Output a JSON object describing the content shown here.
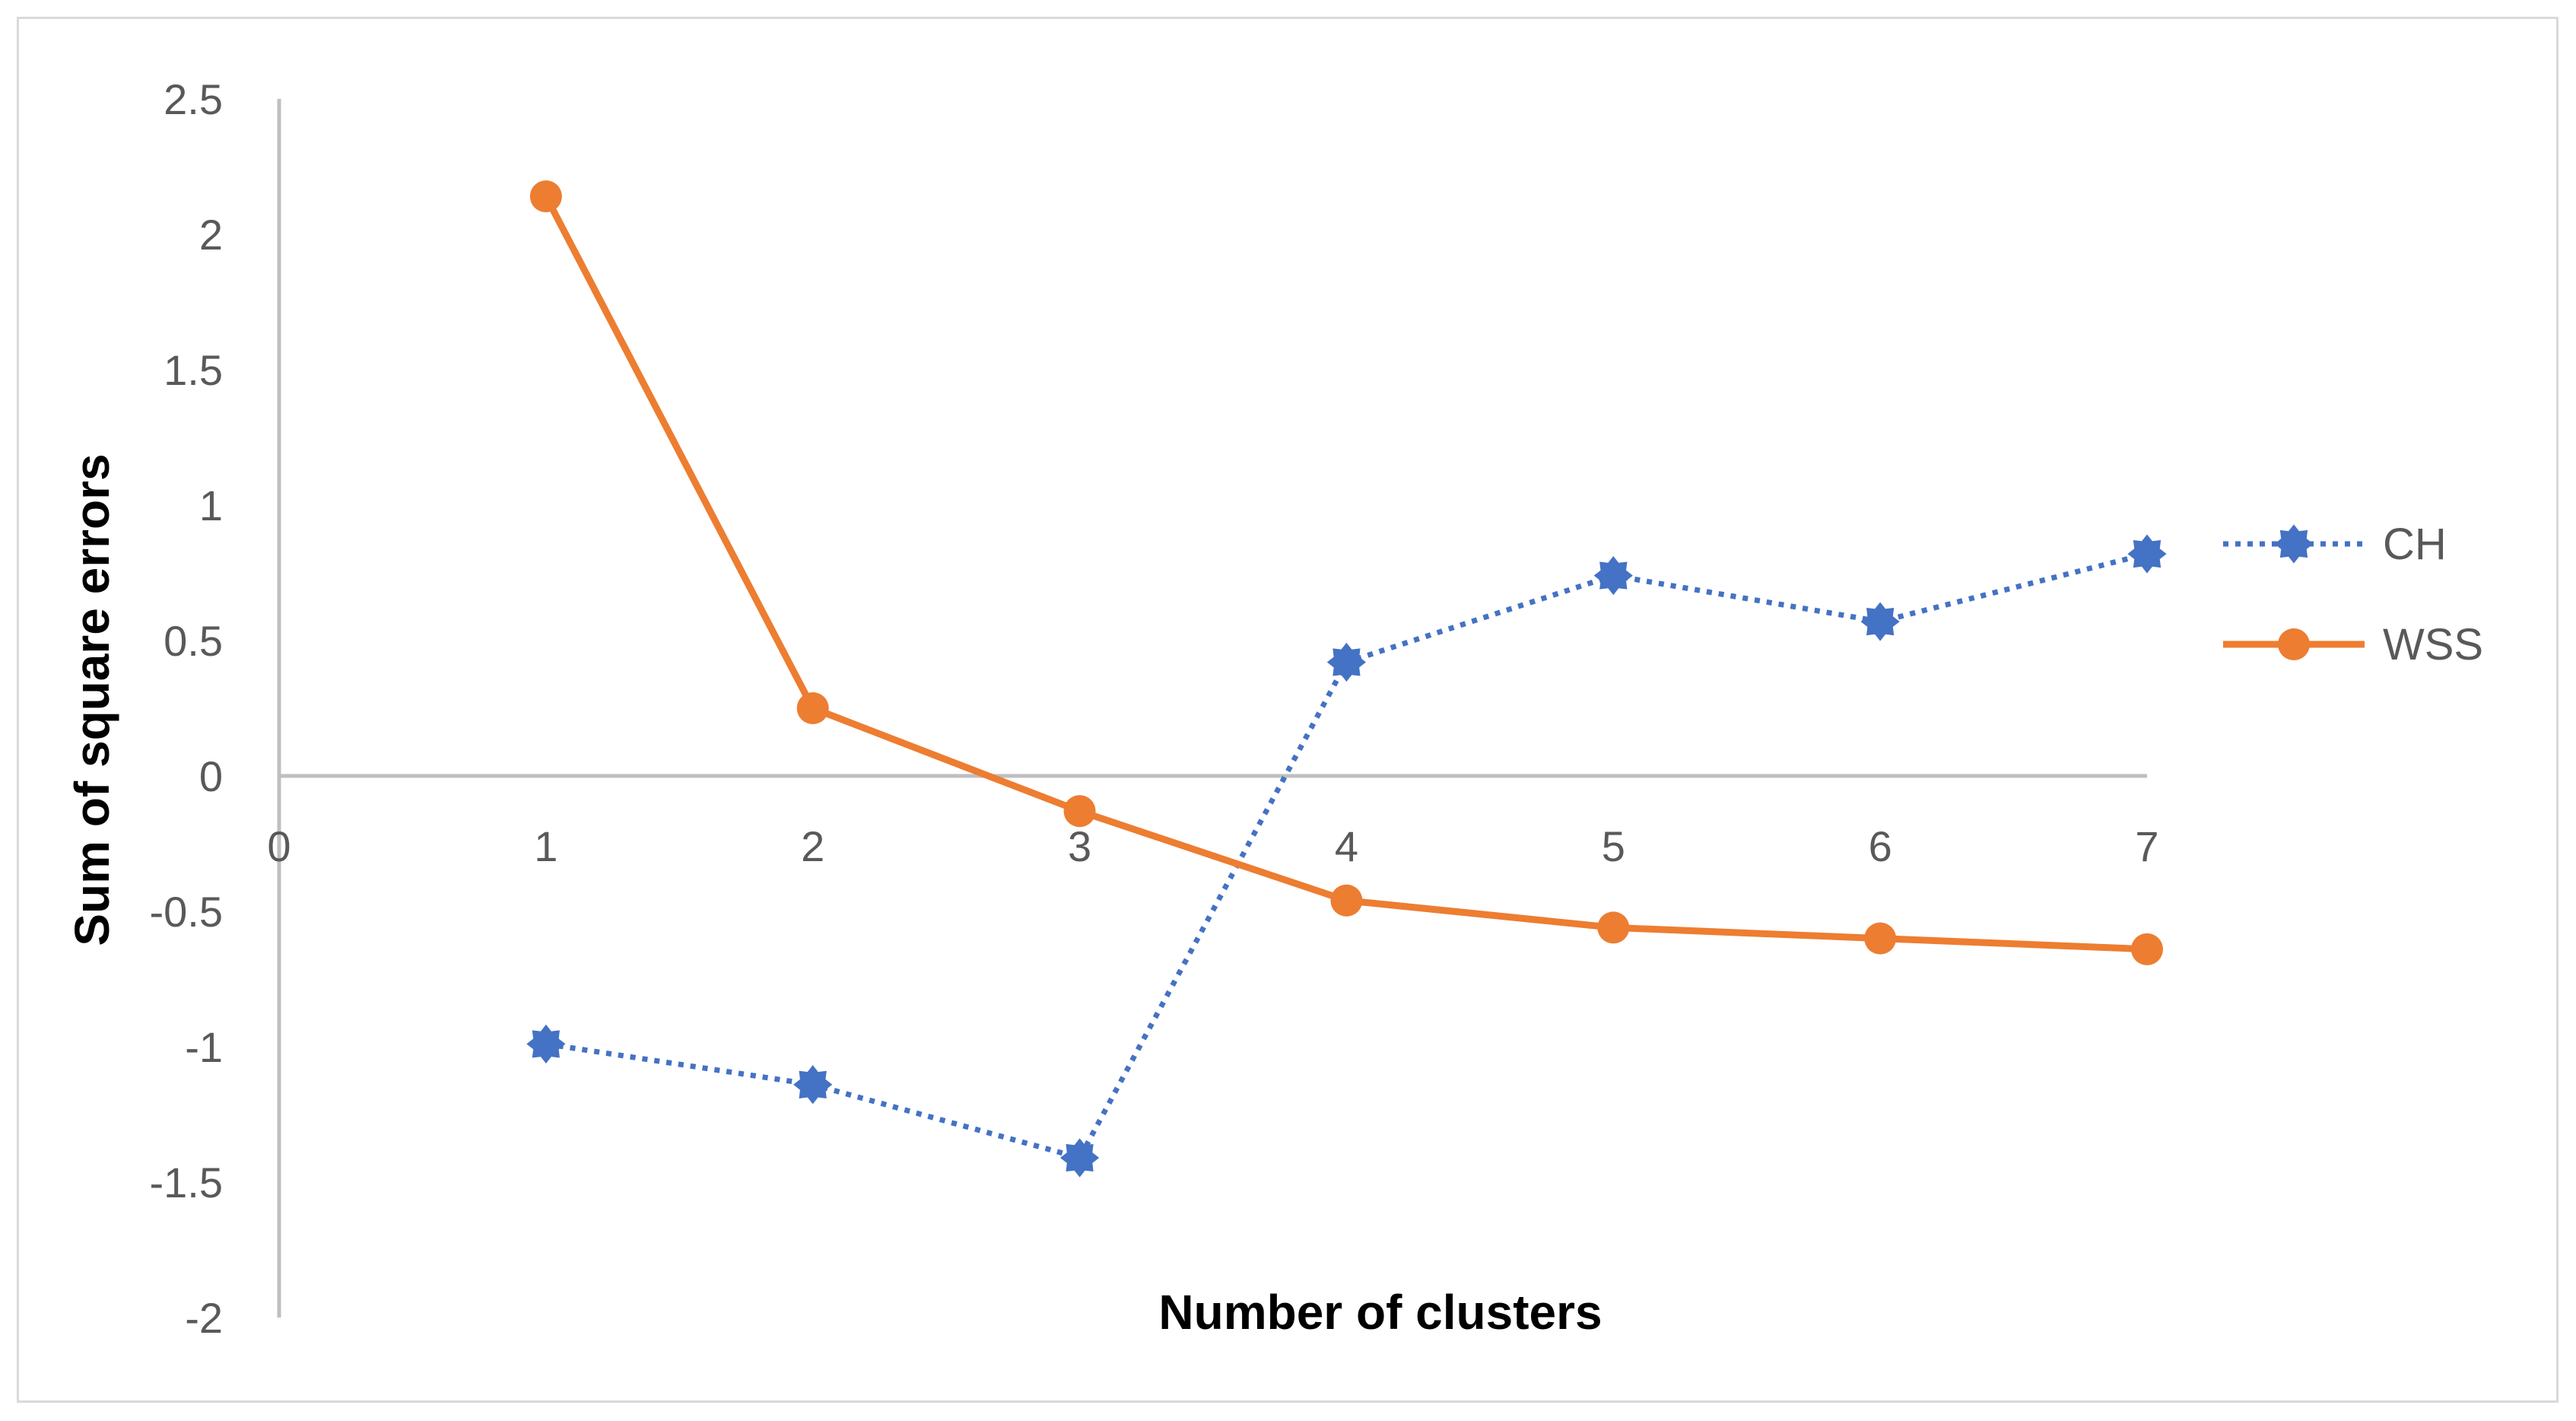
{
  "chart_data": {
    "type": "line",
    "title": "",
    "xlabel": "Number of clusters",
    "ylabel": "Sum of square errors",
    "x_ticks": [
      0,
      1,
      2,
      3,
      4,
      5,
      6,
      7
    ],
    "xlim": [
      0,
      7
    ],
    "y_ticks": [
      2.5,
      2,
      1.5,
      1,
      0.5,
      0,
      -0.5,
      -1,
      -1.5,
      -2
    ],
    "ylim": [
      -2,
      2.5
    ],
    "grid": false,
    "legend_position": "right",
    "series": [
      {
        "name": "CH",
        "color": "#4472c4",
        "style": "dotted",
        "marker": "star",
        "x": [
          1,
          2,
          3,
          4,
          5,
          6,
          7
        ],
        "values": [
          -0.99,
          -1.14,
          -1.41,
          0.42,
          0.74,
          0.57,
          0.82
        ]
      },
      {
        "name": "WSS",
        "color": "#ed7d31",
        "style": "solid",
        "marker": "circle",
        "x": [
          1,
          2,
          3,
          4,
          5,
          6,
          7
        ],
        "values": [
          2.14,
          0.25,
          -0.13,
          -0.46,
          -0.56,
          -0.6,
          -0.64
        ]
      }
    ]
  }
}
